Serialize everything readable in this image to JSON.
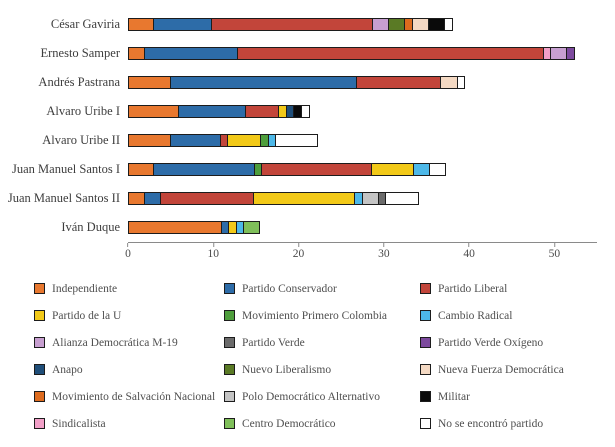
{
  "chart_data": {
    "type": "bar",
    "orientation": "horizontal_stacked",
    "title": "",
    "xlabel": "",
    "ylabel": "",
    "grid": false,
    "legend_position": "bottom",
    "x_ticks": [
      0,
      10,
      20,
      30,
      40,
      50
    ],
    "x_max": 55,
    "categories": [
      "César Gaviria",
      "Ernesto Samper",
      "Andrés Pastrana",
      "Alvaro Uribe I",
      "Alvaro Uribe II",
      "Juan Manuel Santos I",
      "Juan Manuel Santos II",
      "Iván Duque"
    ],
    "parties": [
      {
        "name": "Independiente",
        "color": "#E8782F"
      },
      {
        "name": "Partido Conservador",
        "color": "#2D6CA8"
      },
      {
        "name": "Partido Liberal",
        "color": "#C2453A"
      },
      {
        "name": "Partido de la U",
        "color": "#F2C918"
      },
      {
        "name": "Movimiento Primero Colombia",
        "color": "#4E9E3C"
      },
      {
        "name": "Cambio Radical",
        "color": "#4DB8E8"
      },
      {
        "name": "Alianza Democrática M-19",
        "color": "#C79FD0"
      },
      {
        "name": "Partido Verde",
        "color": "#6B6B6B"
      },
      {
        "name": "Partido Verde Oxígeno",
        "color": "#7D4A9E"
      },
      {
        "name": "Anapo",
        "color": "#1F4E79"
      },
      {
        "name": "Nuevo Liberalismo",
        "color": "#5A7A25"
      },
      {
        "name": "Nueva Fuerza Democrática",
        "color": "#F4D9C3"
      },
      {
        "name": "Movimiento de Salvación Nacional",
        "color": "#DD6B1E"
      },
      {
        "name": "Polo Democrático Alternativo",
        "color": "#C4C4C4"
      },
      {
        "name": "Militar",
        "color": "#0A0A0A"
      },
      {
        "name": "Sindicalista",
        "color": "#F2A0C8"
      },
      {
        "name": "Centro Democrático",
        "color": "#7FBF5A"
      },
      {
        "name": "No se encontró partido",
        "color": "#FFFFFF"
      }
    ],
    "bars": [
      {
        "president": "César Gaviria",
        "segments": [
          {
            "party": "Independiente",
            "value": 3
          },
          {
            "party": "Partido Conservador",
            "value": 7
          },
          {
            "party": "Partido Liberal",
            "value": 19
          },
          {
            "party": "Alianza Democrática M-19",
            "value": 2
          },
          {
            "party": "Nuevo Liberalismo",
            "value": 2
          },
          {
            "party": "Movimiento de Salvación Nacional",
            "value": 1
          },
          {
            "party": "Nueva Fuerza Democrática",
            "value": 2
          },
          {
            "party": "Militar",
            "value": 2
          },
          {
            "party": "No se encontró partido",
            "value": 1
          }
        ]
      },
      {
        "president": "Ernesto Samper",
        "segments": [
          {
            "party": "Independiente",
            "value": 2
          },
          {
            "party": "Partido Conservador",
            "value": 11
          },
          {
            "party": "Partido Liberal",
            "value": 36
          },
          {
            "party": "Sindicalista",
            "value": 1
          },
          {
            "party": "Alianza Democrática M-19",
            "value": 2
          },
          {
            "party": "Partido Verde Oxígeno",
            "value": 1
          }
        ]
      },
      {
        "president": "Andrés Pastrana",
        "segments": [
          {
            "party": "Independiente",
            "value": 5
          },
          {
            "party": "Partido Conservador",
            "value": 22
          },
          {
            "party": "Partido Liberal",
            "value": 10
          },
          {
            "party": "Nueva Fuerza Democrática",
            "value": 2
          },
          {
            "party": "No se encontró partido",
            "value": 1
          }
        ]
      },
      {
        "president": "Alvaro Uribe I",
        "segments": [
          {
            "party": "Independiente",
            "value": 6
          },
          {
            "party": "Partido Conservador",
            "value": 8
          },
          {
            "party": "Partido Liberal",
            "value": 4
          },
          {
            "party": "Partido de la U",
            "value": 1
          },
          {
            "party": "Anapo",
            "value": 1
          },
          {
            "party": "Militar",
            "value": 1
          },
          {
            "party": "No se encontró partido",
            "value": 1
          }
        ]
      },
      {
        "president": "Alvaro Uribe II",
        "segments": [
          {
            "party": "Independiente",
            "value": 5
          },
          {
            "party": "Partido Conservador",
            "value": 6
          },
          {
            "party": "Partido Liberal",
            "value": 1
          },
          {
            "party": "Partido de la U",
            "value": 4
          },
          {
            "party": "Movimiento Primero Colombia",
            "value": 1
          },
          {
            "party": "Cambio Radical",
            "value": 1
          },
          {
            "party": "No se encontró partido",
            "value": 5
          }
        ]
      },
      {
        "president": "Juan Manuel Santos I",
        "segments": [
          {
            "party": "Independiente",
            "value": 3
          },
          {
            "party": "Partido Conservador",
            "value": 12
          },
          {
            "party": "Movimiento Primero Colombia",
            "value": 1
          },
          {
            "party": "Partido Liberal",
            "value": 13
          },
          {
            "party": "Partido de la U",
            "value": 5
          },
          {
            "party": "Cambio Radical",
            "value": 2
          },
          {
            "party": "No se encontró partido",
            "value": 2
          }
        ]
      },
      {
        "president": "Juan Manuel Santos II",
        "segments": [
          {
            "party": "Independiente",
            "value": 2
          },
          {
            "party": "Partido Conservador",
            "value": 2
          },
          {
            "party": "Partido Liberal",
            "value": 11
          },
          {
            "party": "Partido de la U",
            "value": 12
          },
          {
            "party": "Cambio Radical",
            "value": 1
          },
          {
            "party": "Polo Democrático Alternativo",
            "value": 2
          },
          {
            "party": "Partido Verde",
            "value": 1
          },
          {
            "party": "No se encontró partido",
            "value": 4
          }
        ]
      },
      {
        "president": "Iván Duque",
        "segments": [
          {
            "party": "Independiente",
            "value": 11
          },
          {
            "party": "Partido Conservador",
            "value": 1
          },
          {
            "party": "Partido de la U",
            "value": 1
          },
          {
            "party": "Cambio Radical",
            "value": 1
          },
          {
            "party": "Centro Democrático",
            "value": 2
          }
        ]
      }
    ]
  },
  "legend": {
    "items": [
      "Independiente",
      "Partido Conservador",
      "Partido Liberal",
      "Partido de la U",
      "Movimiento Primero Colombia",
      "Cambio Radical",
      "Alianza Democrática M-19",
      "Partido Verde",
      "Partido Verde Oxígeno",
      "Anapo",
      "Nuevo Liberalismo",
      "Nueva Fuerza Democrática",
      "Movimiento de Salvación Nacional",
      "Polo Democrático Alternativo",
      "Militar",
      "Sindicalista",
      "Centro Democrático",
      "No se encontró partido"
    ]
  }
}
